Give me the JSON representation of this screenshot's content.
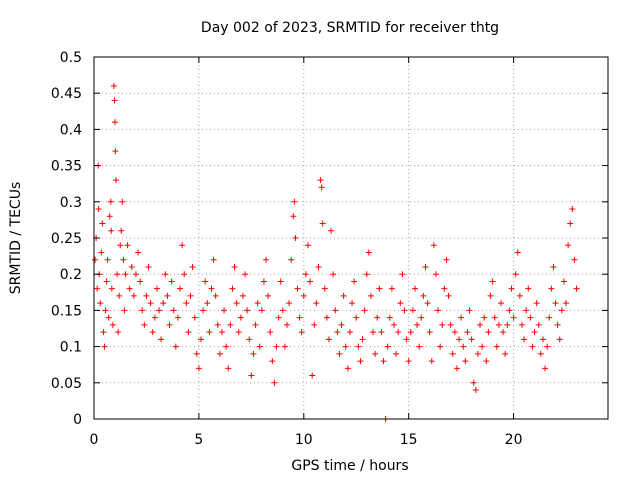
{
  "chart_data": {
    "type": "scatter",
    "title": "Day 002 of 2023, SRMTID for receiver thtg",
    "xlabel": "GPS time / hours",
    "ylabel": "SRMTID / TECUs",
    "xlim": [
      0,
      24.5
    ],
    "ylim": [
      0,
      0.5
    ],
    "x_ticks": [
      0,
      5,
      10,
      15,
      20
    ],
    "x_tick_labels": [
      "0",
      "5",
      "10",
      "15",
      "20"
    ],
    "y_ticks": [
      0,
      0.05,
      0.1,
      0.15,
      0.2,
      0.25,
      0.3,
      0.35,
      0.4,
      0.45,
      0.5
    ],
    "y_tick_labels": [
      "0",
      "0.05",
      "0.1",
      "0.15",
      "0.2",
      "0.25",
      "0.3",
      "0.35",
      "0.4",
      "0.45",
      "0.5"
    ],
    "grid": true,
    "marker": "plus",
    "color": "#ff0000",
    "series": [
      {
        "name": "SRMTID",
        "points": [
          [
            0.05,
            0.22
          ],
          [
            0.1,
            0.25
          ],
          [
            0.15,
            0.18
          ],
          [
            0.2,
            0.35
          ],
          [
            0.22,
            0.29
          ],
          [
            0.25,
            0.2
          ],
          [
            0.3,
            0.16
          ],
          [
            0.35,
            0.23
          ],
          [
            0.4,
            0.27
          ],
          [
            0.45,
            0.12
          ],
          [
            0.5,
            0.1
          ],
          [
            0.55,
            0.15
          ],
          [
            0.6,
            0.19
          ],
          [
            0.65,
            0.22
          ],
          [
            0.7,
            0.14
          ],
          [
            0.75,
            0.28
          ],
          [
            0.8,
            0.3
          ],
          [
            0.82,
            0.26
          ],
          [
            0.85,
            0.18
          ],
          [
            0.9,
            0.13
          ],
          [
            0.95,
            0.46
          ],
          [
            0.98,
            0.44
          ],
          [
            1.0,
            0.41
          ],
          [
            1.02,
            0.37
          ],
          [
            1.05,
            0.33
          ],
          [
            1.1,
            0.2
          ],
          [
            1.15,
            0.12
          ],
          [
            1.2,
            0.17
          ],
          [
            1.25,
            0.24
          ],
          [
            1.3,
            0.26
          ],
          [
            1.35,
            0.3
          ],
          [
            1.4,
            0.22
          ],
          [
            1.45,
            0.15
          ],
          [
            1.5,
            0.2
          ],
          [
            1.6,
            0.24
          ],
          [
            1.7,
            0.18
          ],
          [
            1.8,
            0.21
          ],
          [
            1.9,
            0.17
          ],
          [
            2.0,
            0.2
          ],
          [
            2.1,
            0.23
          ],
          [
            2.2,
            0.19
          ],
          [
            2.3,
            0.15
          ],
          [
            2.4,
            0.13
          ],
          [
            2.5,
            0.17
          ],
          [
            2.6,
            0.21
          ],
          [
            2.7,
            0.16
          ],
          [
            2.8,
            0.12
          ],
          [
            2.9,
            0.14
          ],
          [
            3.0,
            0.18
          ],
          [
            3.1,
            0.15
          ],
          [
            3.2,
            0.11
          ],
          [
            3.3,
            0.16
          ],
          [
            3.4,
            0.2
          ],
          [
            3.5,
            0.17
          ],
          [
            3.6,
            0.13
          ],
          [
            3.7,
            0.19
          ],
          [
            3.8,
            0.15
          ],
          [
            3.9,
            0.1
          ],
          [
            4.0,
            0.14
          ],
          [
            4.1,
            0.18
          ],
          [
            4.2,
            0.24
          ],
          [
            4.3,
            0.2
          ],
          [
            4.4,
            0.16
          ],
          [
            4.5,
            0.12
          ],
          [
            4.6,
            0.17
          ],
          [
            4.7,
            0.21
          ],
          [
            4.8,
            0.14
          ],
          [
            4.9,
            0.09
          ],
          [
            5.0,
            0.07
          ],
          [
            5.1,
            0.11
          ],
          [
            5.2,
            0.15
          ],
          [
            5.3,
            0.19
          ],
          [
            5.4,
            0.16
          ],
          [
            5.5,
            0.12
          ],
          [
            5.6,
            0.18
          ],
          [
            5.7,
            0.22
          ],
          [
            5.8,
            0.17
          ],
          [
            5.9,
            0.13
          ],
          [
            6.0,
            0.09
          ],
          [
            6.1,
            0.12
          ],
          [
            6.2,
            0.15
          ],
          [
            6.3,
            0.1
          ],
          [
            6.4,
            0.07
          ],
          [
            6.5,
            0.13
          ],
          [
            6.6,
            0.18
          ],
          [
            6.7,
            0.21
          ],
          [
            6.8,
            0.16
          ],
          [
            6.9,
            0.12
          ],
          [
            7.0,
            0.14
          ],
          [
            7.1,
            0.17
          ],
          [
            7.2,
            0.2
          ],
          [
            7.3,
            0.15
          ],
          [
            7.4,
            0.11
          ],
          [
            7.5,
            0.06
          ],
          [
            7.6,
            0.09
          ],
          [
            7.7,
            0.13
          ],
          [
            7.8,
            0.16
          ],
          [
            7.9,
            0.1
          ],
          [
            8.0,
            0.15
          ],
          [
            8.1,
            0.19
          ],
          [
            8.2,
            0.22
          ],
          [
            8.3,
            0.17
          ],
          [
            8.4,
            0.12
          ],
          [
            8.5,
            0.08
          ],
          [
            8.6,
            0.05
          ],
          [
            8.7,
            0.1
          ],
          [
            8.8,
            0.14
          ],
          [
            8.9,
            0.19
          ],
          [
            9.0,
            0.15
          ],
          [
            9.1,
            0.1
          ],
          [
            9.2,
            0.13
          ],
          [
            9.3,
            0.16
          ],
          [
            9.4,
            0.22
          ],
          [
            9.5,
            0.28
          ],
          [
            9.55,
            0.3
          ],
          [
            9.6,
            0.25
          ],
          [
            9.7,
            0.18
          ],
          [
            9.8,
            0.14
          ],
          [
            9.9,
            0.12
          ],
          [
            10.0,
            0.17
          ],
          [
            10.1,
            0.2
          ],
          [
            10.2,
            0.24
          ],
          [
            10.3,
            0.19
          ],
          [
            10.4,
            0.06
          ],
          [
            10.5,
            0.13
          ],
          [
            10.6,
            0.16
          ],
          [
            10.7,
            0.21
          ],
          [
            10.8,
            0.33
          ],
          [
            10.85,
            0.32
          ],
          [
            10.9,
            0.27
          ],
          [
            11.0,
            0.18
          ],
          [
            11.1,
            0.14
          ],
          [
            11.2,
            0.11
          ],
          [
            11.3,
            0.26
          ],
          [
            11.4,
            0.2
          ],
          [
            11.5,
            0.15
          ],
          [
            11.6,
            0.12
          ],
          [
            11.7,
            0.09
          ],
          [
            11.8,
            0.13
          ],
          [
            11.9,
            0.17
          ],
          [
            12.0,
            0.1
          ],
          [
            12.1,
            0.07
          ],
          [
            12.2,
            0.12
          ],
          [
            12.3,
            0.16
          ],
          [
            12.4,
            0.19
          ],
          [
            12.5,
            0.14
          ],
          [
            12.6,
            0.1
          ],
          [
            12.7,
            0.08
          ],
          [
            12.8,
            0.11
          ],
          [
            12.9,
            0.15
          ],
          [
            13.0,
            0.2
          ],
          [
            13.1,
            0.23
          ],
          [
            13.2,
            0.17
          ],
          [
            13.3,
            0.12
          ],
          [
            13.4,
            0.09
          ],
          [
            13.5,
            0.14
          ],
          [
            13.6,
            0.18
          ],
          [
            13.7,
            0.12
          ],
          [
            13.8,
            0.08
          ],
          [
            13.9,
            0.0
          ],
          [
            14.0,
            0.1
          ],
          [
            14.1,
            0.14
          ],
          [
            14.2,
            0.18
          ],
          [
            14.3,
            0.13
          ],
          [
            14.4,
            0.09
          ],
          [
            14.5,
            0.12
          ],
          [
            14.6,
            0.16
          ],
          [
            14.7,
            0.2
          ],
          [
            14.8,
            0.15
          ],
          [
            14.9,
            0.11
          ],
          [
            15.0,
            0.08
          ],
          [
            15.1,
            0.12
          ],
          [
            15.2,
            0.15
          ],
          [
            15.3,
            0.18
          ],
          [
            15.4,
            0.13
          ],
          [
            15.5,
            0.1
          ],
          [
            15.6,
            0.14
          ],
          [
            15.7,
            0.17
          ],
          [
            15.8,
            0.21
          ],
          [
            15.9,
            0.16
          ],
          [
            16.0,
            0.12
          ],
          [
            16.1,
            0.08
          ],
          [
            16.2,
            0.24
          ],
          [
            16.3,
            0.2
          ],
          [
            16.4,
            0.15
          ],
          [
            16.5,
            0.1
          ],
          [
            16.6,
            0.13
          ],
          [
            16.7,
            0.18
          ],
          [
            16.8,
            0.22
          ],
          [
            16.9,
            0.17
          ],
          [
            17.0,
            0.13
          ],
          [
            17.1,
            0.09
          ],
          [
            17.2,
            0.12
          ],
          [
            17.3,
            0.07
          ],
          [
            17.4,
            0.11
          ],
          [
            17.5,
            0.14
          ],
          [
            17.6,
            0.1
          ],
          [
            17.7,
            0.08
          ],
          [
            17.8,
            0.12
          ],
          [
            17.9,
            0.15
          ],
          [
            18.0,
            0.11
          ],
          [
            18.1,
            0.05
          ],
          [
            18.2,
            0.04
          ],
          [
            18.3,
            0.09
          ],
          [
            18.4,
            0.13
          ],
          [
            18.5,
            0.1
          ],
          [
            18.6,
            0.14
          ],
          [
            18.7,
            0.08
          ],
          [
            18.8,
            0.12
          ],
          [
            18.9,
            0.17
          ],
          [
            19.0,
            0.19
          ],
          [
            19.1,
            0.14
          ],
          [
            19.2,
            0.1
          ],
          [
            19.3,
            0.13
          ],
          [
            19.4,
            0.16
          ],
          [
            19.5,
            0.12
          ],
          [
            19.6,
            0.09
          ],
          [
            19.7,
            0.13
          ],
          [
            19.8,
            0.15
          ],
          [
            19.9,
            0.18
          ],
          [
            20.0,
            0.14
          ],
          [
            20.1,
            0.2
          ],
          [
            20.2,
            0.23
          ],
          [
            20.3,
            0.17
          ],
          [
            20.4,
            0.13
          ],
          [
            20.5,
            0.11
          ],
          [
            20.6,
            0.15
          ],
          [
            20.7,
            0.18
          ],
          [
            20.8,
            0.14
          ],
          [
            20.9,
            0.1
          ],
          [
            21.0,
            0.12
          ],
          [
            21.1,
            0.16
          ],
          [
            21.2,
            0.13
          ],
          [
            21.3,
            0.09
          ],
          [
            21.4,
            0.11
          ],
          [
            21.5,
            0.07
          ],
          [
            21.6,
            0.1
          ],
          [
            21.7,
            0.14
          ],
          [
            21.8,
            0.18
          ],
          [
            21.9,
            0.21
          ],
          [
            22.0,
            0.16
          ],
          [
            22.1,
            0.13
          ],
          [
            22.2,
            0.11
          ],
          [
            22.3,
            0.15
          ],
          [
            22.4,
            0.19
          ],
          [
            22.5,
            0.16
          ],
          [
            22.6,
            0.24
          ],
          [
            22.7,
            0.27
          ],
          [
            22.8,
            0.29
          ],
          [
            22.9,
            0.22
          ],
          [
            23.0,
            0.18
          ]
        ]
      }
    ]
  }
}
